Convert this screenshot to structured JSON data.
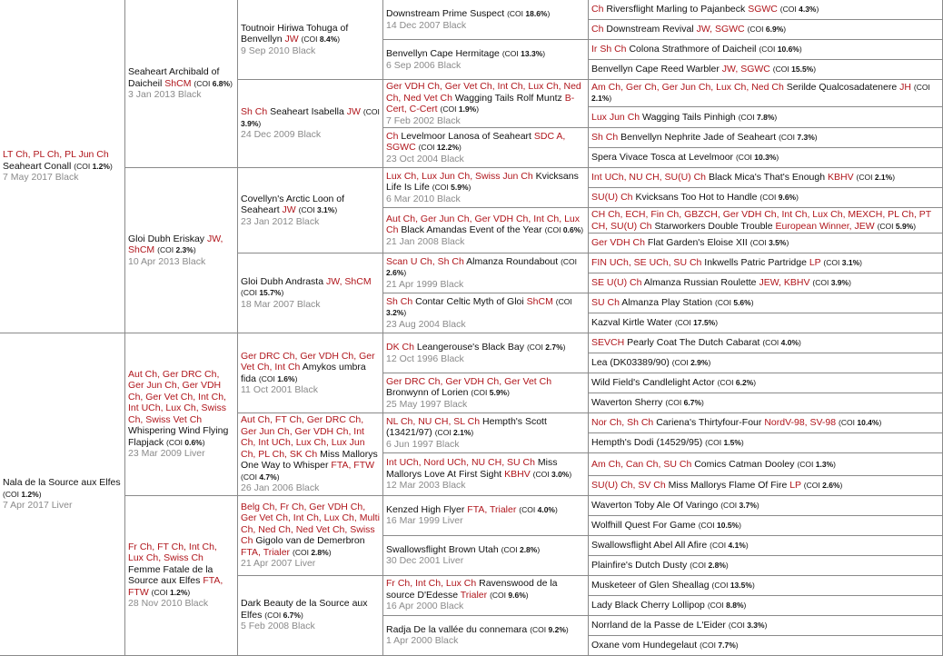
{
  "labels": {
    "coi_open": "(COI",
    "coi_close": ")"
  },
  "colors": {
    "title": "#b0161c",
    "date": "#8a8a8a",
    "border": "#8a8a8a"
  },
  "generations": [
    [
      {
        "prefix": "LT Ch, PL Ch, PL Jun Ch",
        "name": "Seaheart Conall",
        "suffix": "",
        "coi": "1.2%",
        "dob": "7 May 2017 Black"
      },
      {
        "prefix": "",
        "name": "Nala de la Source aux Elfes",
        "suffix": "",
        "coi": "1.2%",
        "dob": "7 Apr 2017 Liver"
      }
    ],
    [
      {
        "prefix": "",
        "name": "Seaheart Archibald of Daicheil",
        "suffix": "ShCM",
        "coi": "6.8%",
        "dob": "3 Jan 2013 Black"
      },
      {
        "prefix": "",
        "name": "Gloi Dubh Eriskay",
        "suffix": "JW, ShCM",
        "coi": "2.3%",
        "dob": "10 Apr 2013 Black"
      },
      {
        "prefix": "Aut Ch, Ger DRC Ch, Ger Jun Ch, Ger VDH Ch, Ger Vet Ch, Int Ch, Int UCh, Lux Ch, Swiss Ch, Swiss Vet Ch",
        "name": "Whispering Wind Flying Flapjack",
        "suffix": "",
        "coi": "0.6%",
        "dob": "23 Mar 2009 Liver"
      },
      {
        "prefix": "Fr Ch, FT Ch, Int Ch, Lux Ch, Swiss Ch",
        "name": "Femme Fatale de la Source aux Elfes",
        "suffix": "FTA, FTW",
        "coi": "1.2%",
        "dob": "28 Nov 2010 Black"
      }
    ],
    [
      {
        "prefix": "",
        "name": "Toutnoir Hiriwa Tohuga of Benvellyn",
        "suffix": "JW",
        "coi": "8.4%",
        "dob": "9 Sep 2010 Black"
      },
      {
        "prefix": "Sh Ch",
        "name": "Seaheart Isabella",
        "suffix": "JW",
        "coi": "3.9%",
        "dob": "24 Dec 2009 Black"
      },
      {
        "prefix": "",
        "name": "Covellyn's Arctic Loon of Seaheart",
        "suffix": "JW",
        "coi": "3.1%",
        "dob": "23 Jan 2012 Black"
      },
      {
        "prefix": "",
        "name": "Gloi Dubh Andrasta",
        "suffix": "JW, ShCM",
        "coi": "15.7%",
        "dob": "18 Mar 2007 Black"
      },
      {
        "prefix": "Ger DRC Ch, Ger VDH Ch, Ger Vet Ch, Int Ch",
        "name": "Amykos umbra fida",
        "suffix": "",
        "coi": "1.6%",
        "dob": "11 Oct 2001 Black"
      },
      {
        "prefix": "Aut Ch, FT Ch, Ger DRC Ch, Ger Jun Ch, Ger VDH Ch, Int Ch, Int UCh, Lux Ch, Lux Jun Ch, PL Ch, SK Ch",
        "name": "Miss Mallorys One Way to Whisper",
        "suffix": "FTA, FTW",
        "coi": "4.7%",
        "dob": "26 Jan 2006 Black"
      },
      {
        "prefix": "Belg Ch, Fr Ch, Ger VDH Ch, Ger Vet Ch, Int Ch, Lux Ch, Multi Ch, Ned Ch, Ned Vet Ch, Swiss Ch",
        "name": "Gigolo van de Demerbron",
        "suffix": "FTA, Trialer",
        "coi": "2.8%",
        "dob": "21 Apr 2007 Liver"
      },
      {
        "prefix": "",
        "name": "Dark Beauty de la Source aux Elfes",
        "suffix": "",
        "coi": "6.7%",
        "dob": "5 Feb 2008 Black"
      }
    ],
    [
      {
        "prefix": "",
        "name": "Downstream Prime Suspect",
        "suffix": "",
        "coi": "18.6%",
        "dob": "14 Dec 2007 Black"
      },
      {
        "prefix": "",
        "name": "Benvellyn Cape Hermitage",
        "suffix": "",
        "coi": "13.3%",
        "dob": "6 Sep 2006 Black"
      },
      {
        "prefix": "Ger VDH Ch, Ger Vet Ch, Int Ch, Lux Ch, Ned Ch, Ned Vet Ch",
        "name": "Wagging Tails Rolf Muntz",
        "suffix": "B-Cert, C-Cert",
        "coi": "1.9%",
        "dob": "7 Feb 2002 Black"
      },
      {
        "prefix": "Ch",
        "name": "Levelmoor Lanosa of Seaheart",
        "suffix": "SDC A, SGWC",
        "coi": "12.2%",
        "dob": "23 Oct 2004 Black"
      },
      {
        "prefix": "Lux Ch, Lux Jun Ch, Swiss Jun Ch",
        "name": "Kvicksans Life Is Life",
        "suffix": "",
        "coi": "5.9%",
        "dob": "6 Mar 2010 Black"
      },
      {
        "prefix": "Aut Ch, Ger Jun Ch, Ger VDH Ch, Int Ch, Lux Ch",
        "name": "Black Amandas Event of the Year",
        "suffix": "",
        "coi": "0.6%",
        "dob": "21 Jan 2008 Black"
      },
      {
        "prefix": "Scan U Ch, Sh Ch",
        "name": "Almanza Roundabout",
        "suffix": "",
        "coi": "2.6%",
        "dob": "21 Apr 1999 Black"
      },
      {
        "prefix": "Sh Ch",
        "name": "Contar Celtic Myth of Gloi",
        "suffix": "ShCM",
        "coi": "3.2%",
        "dob": "23 Aug 2004 Black"
      },
      {
        "prefix": "DK Ch",
        "name": "Leangerouse's Black Bay",
        "suffix": "",
        "coi": "2.7%",
        "dob": "12 Oct 1996 Black"
      },
      {
        "prefix": "Ger DRC Ch, Ger VDH Ch, Ger Vet Ch",
        "name": "Bronwynn of Lorien",
        "suffix": "",
        "coi": "5.9%",
        "dob": "25 May 1997 Black"
      },
      {
        "prefix": "NL Ch, NU CH, SL Ch",
        "name": "Hempth's Scott (13421/97)",
        "suffix": "",
        "coi": "2.1%",
        "dob": "6 Jun 1997 Black"
      },
      {
        "prefix": "Int UCh, Nord UCh, NU CH, SU Ch",
        "name": "Miss Mallorys Love At First Sight",
        "suffix": "KBHV",
        "coi": "3.0%",
        "dob": "12 Mar 2003 Black"
      },
      {
        "prefix": "",
        "name": "Kenzed High Flyer",
        "suffix": "FTA, Trialer",
        "coi": "4.0%",
        "dob": "16 Mar 1999 Liver"
      },
      {
        "prefix": "",
        "name": "Swallowsflight Brown Utah",
        "suffix": "",
        "coi": "2.8%",
        "dob": "30 Dec 2001 Liver"
      },
      {
        "prefix": "Fr Ch, Int Ch, Lux Ch",
        "name": "Ravenswood de la source D'Edesse",
        "suffix": "Trialer",
        "coi": "9.6%",
        "dob": "16 Apr 2000 Black"
      },
      {
        "prefix": "",
        "name": "Radja De la vallée du connemara",
        "suffix": "",
        "coi": "9.2%",
        "dob": "1 Apr 2000 Black"
      }
    ],
    [
      {
        "prefix": "Ch",
        "name": "Riversflight Marling to Pajanbeck",
        "suffix": "SGWC",
        "coi": "4.3%"
      },
      {
        "prefix": "Ch",
        "name": "Downstream Revival",
        "suffix": "JW, SGWC",
        "coi": "6.9%"
      },
      {
        "prefix": "Ir Sh Ch",
        "name": "Colona Strathmore of Daicheil",
        "suffix": "",
        "coi": "10.6%"
      },
      {
        "prefix": "",
        "name": "Benvellyn Cape Reed Warbler",
        "suffix": "JW, SGWC",
        "coi": "15.5%"
      },
      {
        "prefix": "Am Ch, Ger Ch, Ger Jun Ch, Lux Ch, Ned Ch",
        "name": "Serilde Qualcosadatenere",
        "suffix": "JH",
        "coi": "2.1%"
      },
      {
        "prefix": "Lux Jun Ch",
        "name": "Wagging Tails Pinhigh",
        "suffix": "",
        "coi": "7.8%"
      },
      {
        "prefix": "Sh Ch",
        "name": "Benvellyn Nephrite Jade of Seaheart",
        "suffix": "",
        "coi": "7.3%"
      },
      {
        "prefix": "",
        "name": "Spera Vivace Tosca at Levelmoor",
        "suffix": "",
        "coi": "10.3%"
      },
      {
        "prefix": "Int UCh, NU CH, SU(U) Ch",
        "name": "Black Mica's That's Enough",
        "suffix": "KBHV",
        "coi": "2.1%"
      },
      {
        "prefix": "SU(U) Ch",
        "name": "Kvicksans Too Hot to Handle",
        "suffix": "",
        "coi": "9.6%"
      },
      {
        "prefix": "CH Ch, ECH, Fin Ch, GBZCH, Ger VDH Ch, Int Ch, Lux Ch, MEXCH, PL Ch, PT CH, SU(U) Ch",
        "name": "Starworkers Double Trouble",
        "suffix": "European Winner, JEW",
        "coi": "5.9%"
      },
      {
        "prefix": "Ger VDH Ch",
        "name": "Flat Garden's Eloise XII",
        "suffix": "",
        "coi": "3.5%"
      },
      {
        "prefix": "FIN UCh, SE UCh, SU Ch",
        "name": "Inkwells Patric Partridge",
        "suffix": "LP",
        "coi": "3.1%"
      },
      {
        "prefix": "SE U(U) Ch",
        "name": "Almanza Russian Roulette",
        "suffix": "JEW, KBHV",
        "coi": "3.9%"
      },
      {
        "prefix": "SU Ch",
        "name": "Almanza Play Station",
        "suffix": "",
        "coi": "5.6%"
      },
      {
        "prefix": "",
        "name": "Kazval Kirtle Water",
        "suffix": "",
        "coi": "17.5%"
      },
      {
        "prefix": "SEVCH",
        "name": "Pearly Coat The Dutch Cabarat",
        "suffix": "",
        "coi": "4.0%"
      },
      {
        "prefix": "",
        "name": "Lea (DK03389/90)",
        "suffix": "",
        "coi": "2.9%"
      },
      {
        "prefix": "",
        "name": "Wild Field's Candlelight Actor",
        "suffix": "",
        "coi": "6.2%"
      },
      {
        "prefix": "",
        "name": "Waverton Sherry",
        "suffix": "",
        "coi": "6.7%"
      },
      {
        "prefix": "Nor Ch, Sh Ch",
        "name": "Cariena's Thirtyfour-Four",
        "suffix": "NordV-98, SV-98",
        "coi": "10.4%"
      },
      {
        "prefix": "",
        "name": "Hempth's Dodi (14529/95)",
        "suffix": "",
        "coi": "1.5%"
      },
      {
        "prefix": "Am Ch, Can Ch, SU Ch",
        "name": "Comics Catman Dooley",
        "suffix": "",
        "coi": "1.3%"
      },
      {
        "prefix": "SU(U) Ch, SV Ch",
        "name": "Miss Mallorys Flame Of Fire",
        "suffix": "LP",
        "coi": "2.6%"
      },
      {
        "prefix": "",
        "name": "Waverton Toby Ale Of Varingo",
        "suffix": "",
        "coi": "3.7%"
      },
      {
        "prefix": "",
        "name": "Wolfhill Quest For Game",
        "suffix": "",
        "coi": "10.5%"
      },
      {
        "prefix": "",
        "name": "Swallowsflight Abel All Afire",
        "suffix": "",
        "coi": "4.1%"
      },
      {
        "prefix": "",
        "name": "Plainfire's Dutch Dusty",
        "suffix": "",
        "coi": "2.8%"
      },
      {
        "prefix": "",
        "name": "Musketeer of Glen Sheallag",
        "suffix": "",
        "coi": "13.5%"
      },
      {
        "prefix": "",
        "name": "Lady Black Cherry Lollipop",
        "suffix": "",
        "coi": "8.8%"
      },
      {
        "prefix": "",
        "name": "Norrland de la Passe de L'Eider",
        "suffix": "",
        "coi": "3.3%"
      },
      {
        "prefix": "",
        "name": "Oxane vom Hundegelaut",
        "suffix": "",
        "coi": "7.7%"
      }
    ]
  ]
}
